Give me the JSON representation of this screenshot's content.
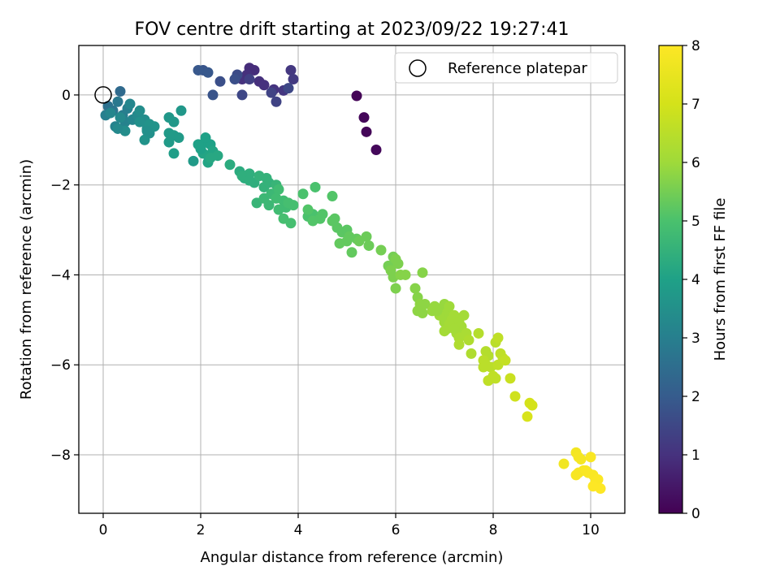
{
  "chart_data": {
    "type": "scatter",
    "title": "FOV centre drift starting at 2023/09/22 19:27:41",
    "xlabel": "Angular distance from reference (arcmin)",
    "ylabel": "Rotation from reference (arcmin)",
    "xlim": [
      -0.5,
      10.7
    ],
    "ylim": [
      -9.3,
      1.1
    ],
    "xticks": [
      0,
      2,
      4,
      6,
      8,
      10
    ],
    "xtick_labels": [
      "0",
      "2",
      "4",
      "6",
      "8",
      "10"
    ],
    "yticks": [
      0,
      -2,
      -4,
      -6,
      -8
    ],
    "ytick_labels": [
      "0",
      "−2",
      "−4",
      "−6",
      "−8"
    ],
    "grid": true,
    "colormap": "viridis",
    "colorbar": {
      "label": "Hours from first FF file",
      "range": [
        0,
        8
      ],
      "ticks": [
        0,
        1,
        2,
        3,
        4,
        5,
        6,
        7,
        8
      ],
      "tick_labels": [
        "0",
        "1",
        "2",
        "3",
        "4",
        "5",
        "6",
        "7",
        "8"
      ]
    },
    "legend": {
      "entry": "Reference platepar",
      "placement": "top-right"
    },
    "reference_point": {
      "x": 0,
      "y": 0
    },
    "series": [
      {
        "x": [
          5.2,
          5.4,
          5.6,
          5.35
        ],
        "y": [
          -0.02,
          -0.82,
          -1.22,
          -0.5
        ],
        "c": [
          0.05,
          0.1,
          0.15,
          0.12
        ]
      },
      {
        "x": [
          3.0,
          3.1,
          3.2,
          3.3,
          3.5,
          3.7,
          3.85,
          3.9,
          2.85,
          2.95
        ],
        "y": [
          0.6,
          0.55,
          0.3,
          0.22,
          0.12,
          0.1,
          0.55,
          0.35,
          0.35,
          0.45
        ],
        "c": [
          0.9,
          0.9,
          0.95,
          1.0,
          1.05,
          1.1,
          1.15,
          1.2,
          1.0,
          0.95
        ]
      },
      {
        "x": [
          3.0,
          3.45,
          3.55,
          3.8,
          2.85,
          2.75,
          2.4,
          2.25,
          2.05,
          1.95,
          2.15,
          2.7
        ],
        "y": [
          0.35,
          0.05,
          -0.15,
          0.15,
          0.0,
          0.45,
          0.3,
          0.0,
          0.55,
          0.55,
          0.5,
          0.35
        ],
        "c": [
          1.3,
          1.4,
          1.4,
          1.5,
          1.5,
          1.6,
          1.7,
          1.8,
          1.8,
          1.9,
          1.9,
          1.7
        ]
      },
      {
        "x": [
          0.35,
          0.1,
          0.2,
          0.3,
          0.4,
          0.5,
          0.05,
          0.25,
          0.45,
          0.6,
          0.55,
          0.15,
          0.35,
          0.7,
          0.75
        ],
        "y": [
          0.08,
          -0.25,
          -0.35,
          -0.15,
          -0.45,
          -0.3,
          -0.45,
          -0.7,
          -0.6,
          -0.55,
          -0.2,
          -0.4,
          -0.5,
          -0.45,
          -0.35
        ],
        "c": [
          2.4,
          2.6,
          2.7,
          2.8,
          2.9,
          3.0,
          3.0,
          3.1,
          3.1,
          3.2,
          3.2,
          3.2,
          3.3,
          3.3,
          3.4
        ]
      },
      {
        "x": [
          0.85,
          0.9,
          0.95,
          1.05,
          0.85,
          0.95,
          1.35,
          1.45,
          1.6,
          1.35,
          1.45,
          1.55,
          1.35,
          1.45,
          0.45,
          0.3,
          0.75,
          0.9
        ],
        "y": [
          -0.55,
          -0.75,
          -0.85,
          -0.7,
          -1.0,
          -0.65,
          -0.5,
          -0.6,
          -0.35,
          -0.85,
          -0.9,
          -0.95,
          -1.05,
          -1.3,
          -0.8,
          -0.75,
          -0.6,
          -0.8
        ],
        "c": [
          3.4,
          3.5,
          3.5,
          3.6,
          3.6,
          3.6,
          3.7,
          3.7,
          3.7,
          3.8,
          3.8,
          3.8,
          3.8,
          3.9,
          3.4,
          3.3,
          3.5,
          3.5
        ]
      },
      {
        "x": [
          1.85,
          2.0,
          2.1,
          2.2,
          2.05,
          2.15,
          2.25,
          2.35,
          2.0,
          1.95,
          2.1,
          2.15,
          2.2,
          2.6,
          2.8,
          2.9,
          3.0,
          3.1,
          2.85,
          3.0,
          3.2,
          3.3,
          3.35,
          3.4,
          3.15,
          3.55
        ],
        "y": [
          -1.47,
          -1.15,
          -1.05,
          -1.1,
          -1.3,
          -1.35,
          -1.25,
          -1.35,
          -1.2,
          -1.1,
          -0.95,
          -1.5,
          -1.4,
          -1.55,
          -1.7,
          -1.85,
          -1.75,
          -1.95,
          -1.8,
          -1.9,
          -1.8,
          -2.05,
          -1.85,
          -1.95,
          -2.4,
          -2.0
        ],
        "c": [
          3.8,
          4.0,
          4.0,
          4.0,
          4.1,
          4.1,
          4.1,
          4.2,
          4.0,
          4.0,
          4.0,
          4.1,
          4.2,
          4.3,
          4.3,
          4.3,
          4.4,
          4.4,
          4.4,
          4.4,
          4.5,
          4.5,
          4.5,
          4.5,
          4.6,
          4.6
        ]
      },
      {
        "x": [
          3.3,
          3.4,
          3.45,
          3.6,
          3.7,
          3.75,
          3.6,
          3.8,
          3.55,
          3.85,
          3.7,
          3.9,
          4.1,
          4.2,
          4.3,
          4.35,
          4.45,
          4.2,
          4.3,
          4.5,
          4.7,
          4.75,
          4.8,
          4.9,
          5.0,
          5.05,
          4.85,
          5.0,
          5.1,
          5.2,
          5.25,
          5.4,
          5.45,
          4.7
        ],
        "y": [
          -2.3,
          -2.45,
          -2.2,
          -2.1,
          -2.35,
          -2.5,
          -2.55,
          -2.4,
          -2.3,
          -2.85,
          -2.75,
          -2.45,
          -2.2,
          -2.7,
          -2.65,
          -2.05,
          -2.75,
          -2.55,
          -2.8,
          -2.65,
          -2.25,
          -2.75,
          -2.95,
          -3.05,
          -3.0,
          -3.15,
          -3.3,
          -3.25,
          -3.5,
          -3.2,
          -3.25,
          -3.15,
          -3.35,
          -2.8
        ],
        "c": [
          4.7,
          4.7,
          4.7,
          4.8,
          4.8,
          4.8,
          4.8,
          4.9,
          4.8,
          4.9,
          4.9,
          4.9,
          5.0,
          5.0,
          5.0,
          5.0,
          5.1,
          5.1,
          5.1,
          5.1,
          5.1,
          5.2,
          5.2,
          5.2,
          5.2,
          5.3,
          5.3,
          5.3,
          5.3,
          5.3,
          5.4,
          5.4,
          5.4,
          5.2
        ]
      },
      {
        "x": [
          5.7,
          5.85,
          5.95,
          6.0,
          6.05,
          5.9,
          5.95,
          6.0,
          6.1,
          6.2,
          6.4,
          6.45,
          6.5,
          6.55,
          6.6,
          6.5,
          6.45,
          6.55,
          6.75,
          6.8,
          6.9,
          7.0,
          7.05,
          7.1,
          7.15,
          7.0,
          6.9,
          6.85,
          7.05,
          7.2,
          7.3,
          7.35,
          7.4,
          7.25,
          7.15,
          7.3,
          7.45,
          7.1,
          7.0,
          7.2
        ],
        "y": [
          -3.45,
          -3.8,
          -3.6,
          -3.65,
          -3.75,
          -3.9,
          -4.05,
          -4.3,
          -4.0,
          -4.0,
          -4.3,
          -4.5,
          -4.75,
          -4.85,
          -4.65,
          -4.65,
          -4.8,
          -3.95,
          -4.8,
          -4.7,
          -4.75,
          -4.65,
          -4.85,
          -4.7,
          -4.95,
          -5.05,
          -4.9,
          -4.8,
          -5.2,
          -4.9,
          -5.05,
          -5.15,
          -4.9,
          -5.3,
          -5.0,
          -5.4,
          -5.3,
          -5.1,
          -5.25,
          -5.2
        ],
        "c": [
          5.5,
          5.5,
          5.5,
          5.6,
          5.6,
          5.6,
          5.6,
          5.6,
          5.7,
          5.7,
          5.7,
          5.7,
          5.8,
          5.8,
          5.8,
          5.8,
          5.8,
          5.7,
          5.9,
          5.9,
          5.9,
          5.9,
          6.0,
          6.0,
          6.0,
          6.0,
          6.0,
          5.9,
          6.0,
          6.1,
          6.1,
          6.1,
          6.1,
          6.1,
          6.1,
          6.2,
          6.2,
          6.1,
          6.1,
          6.1
        ]
      },
      {
        "x": [
          7.3,
          7.5,
          7.55,
          7.7,
          7.85,
          7.9,
          7.8,
          7.95,
          8.05,
          8.1,
          8.15,
          8.2,
          8.1,
          8.25,
          7.8,
          7.85,
          7.9,
          8.0,
          7.9,
          8.05
        ],
        "y": [
          -5.55,
          -5.45,
          -5.75,
          -5.3,
          -5.7,
          -5.8,
          -5.9,
          -6.05,
          -5.5,
          -5.4,
          -5.75,
          -5.85,
          -6.0,
          -5.9,
          -6.05,
          -6.0,
          -6.35,
          -6.25,
          -6.35,
          -6.3
        ],
        "c": [
          6.3,
          6.3,
          6.3,
          6.4,
          6.4,
          6.4,
          6.5,
          6.5,
          6.5,
          6.6,
          6.6,
          6.6,
          6.6,
          6.7,
          6.5,
          6.5,
          6.6,
          6.6,
          6.6,
          6.6
        ]
      },
      {
        "x": [
          8.35,
          8.45,
          8.75,
          8.8,
          8.7
        ],
        "y": [
          -6.3,
          -6.7,
          -6.85,
          -6.9,
          -7.15
        ],
        "c": [
          6.8,
          6.9,
          7.0,
          7.0,
          7.1
        ]
      },
      {
        "x": [
          9.45,
          9.7,
          9.75,
          9.8,
          9.75,
          9.85,
          9.95,
          10.0,
          10.05,
          10.1,
          10.15,
          10.2,
          10.05,
          9.9,
          9.7
        ],
        "y": [
          -8.2,
          -7.95,
          -8.05,
          -8.1,
          -8.4,
          -8.35,
          -8.4,
          -8.05,
          -8.45,
          -8.6,
          -8.55,
          -8.75,
          -8.7,
          -8.35,
          -8.45
        ],
        "c": [
          7.7,
          7.75,
          7.8,
          7.8,
          7.85,
          7.85,
          7.9,
          7.9,
          7.9,
          7.95,
          7.95,
          8.0,
          8.0,
          7.9,
          7.85
        ]
      }
    ]
  }
}
